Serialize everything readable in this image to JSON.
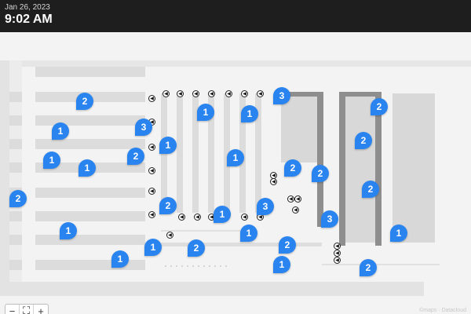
{
  "header": {
    "date": "Jan 26, 2023",
    "time": "9:02 AM"
  },
  "map": {
    "pin_color": "#2a84f0",
    "pins": [
      {
        "count": "2"
      },
      {
        "count": "1"
      },
      {
        "count": "3"
      },
      {
        "count": "1"
      },
      {
        "count": "1"
      },
      {
        "count": "2"
      },
      {
        "count": "1"
      },
      {
        "count": "1"
      },
      {
        "count": "2"
      },
      {
        "count": "1"
      },
      {
        "count": "3"
      },
      {
        "count": "2"
      },
      {
        "count": "2"
      },
      {
        "count": "2"
      },
      {
        "count": "2"
      },
      {
        "count": "1"
      },
      {
        "count": "2"
      },
      {
        "count": "1"
      },
      {
        "count": "1"
      },
      {
        "count": "3"
      },
      {
        "count": "1"
      },
      {
        "count": "1"
      },
      {
        "count": "2"
      },
      {
        "count": "1"
      },
      {
        "count": "2"
      },
      {
        "count": "2"
      },
      {
        "count": "2"
      },
      {
        "count": "1"
      },
      {
        "count": "1"
      }
    ],
    "direction_marker_glyph": "◀"
  },
  "controls": {
    "zoom_out": "−",
    "fit": "⛶",
    "zoom_in": "+"
  },
  "attribution": "©maps · Datacloud"
}
